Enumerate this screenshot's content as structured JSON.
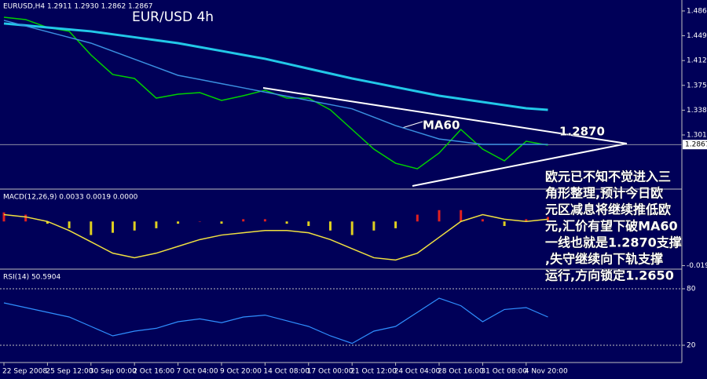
{
  "chart_data": {
    "type": "line",
    "title": "EUR/USD 4h",
    "header": "EURUSD,H4  1.2911 1.2930 1.2862 1.2867",
    "categories": [
      "22 Sep 2008",
      null,
      "25 Sep 12:00",
      null,
      "30 Sep 00:00",
      null,
      "2 Oct 16:00",
      null,
      "7 Oct 04:00",
      null,
      "9 Oct 20:00",
      null,
      "14 Oct 08:00",
      null,
      "17 Oct 00:00",
      null,
      "21 Oct 12:00",
      null,
      "24 Oct 04:00",
      null,
      "28 Oct 16:00",
      null,
      "31 Oct 08:00",
      null,
      "4 Nov 20:00",
      null,
      null
    ],
    "series": [
      {
        "color": "#00d000",
        "values": [
          1.4766,
          1.4731,
          1.4614,
          1.4556,
          1.4204,
          1.3912,
          1.3853,
          1.356,
          1.3619,
          1.3642,
          1.3525,
          1.3595,
          1.3677,
          1.356,
          1.356,
          1.3385,
          1.3092,
          1.2799,
          1.2588,
          1.2506,
          1.2741,
          1.3092,
          1.2799,
          1.2624,
          1.2916,
          1.2858,
          null
        ]
      },
      {
        "color": "#22c8e8",
        "values": [
          1.4673,
          1.4644,
          1.4614,
          1.4585,
          1.4556,
          1.4512,
          1.4468,
          1.4424,
          1.438,
          1.4321,
          1.4263,
          1.4204,
          1.4146,
          1.4073,
          1.3999,
          1.3926,
          1.3853,
          1.3789,
          1.3724,
          1.366,
          1.3595,
          1.3548,
          1.3502,
          1.3455,
          1.3408,
          1.3385,
          null
        ]
      },
      {
        "color": "#3a8fe0",
        "values": [
          1.472,
          1.4635,
          1.455,
          1.4465,
          1.438,
          1.426,
          1.414,
          1.402,
          1.39,
          1.3838,
          1.3775,
          1.3713,
          1.365,
          1.3588,
          1.3525,
          1.3463,
          1.34,
          1.3275,
          1.315,
          1.305,
          1.295,
          1.291,
          1.287,
          1.287,
          1.287,
          1.287,
          null
        ]
      }
    ],
    "ylim": [
      1.2214,
      1.5
    ],
    "yticks": [
      {
        "value": 1.486,
        "label": "1.4860"
      },
      {
        "value": 1.449,
        "label": "1.4490"
      },
      {
        "value": 1.412,
        "label": "1.4120"
      },
      {
        "value": 1.375,
        "label": "1.3750"
      },
      {
        "value": 1.338,
        "label": "1.3380"
      },
      {
        "value": 1.301,
        "label": "1.3010"
      }
    ],
    "current_price": 1.2867,
    "annotations": [
      "MA60",
      "1.2870"
    ],
    "note_lines": [
      "欧元已不知不觉进入三",
      "角形整理,预计今日欧",
      "元区减息将继续推低欧",
      "元,汇价有望下破MA60",
      "一线也就是1.2870支撑",
      ",失守继续向下轨支撑",
      "运行,方向锁定1.2650"
    ],
    "macd": {
      "title": "MACD(12,26,9) 0.0033 0.0019 0.0000",
      "histogram": [
        0.004,
        0.003,
        -0.001,
        -0.003,
        -0.006,
        -0.005,
        -0.004,
        -0.003,
        -0.001,
        0.0,
        -0.001,
        0.001,
        0.001,
        -0.001,
        -0.002,
        -0.004,
        -0.006,
        -0.004,
        -0.003,
        0.003,
        0.005,
        0.005,
        0.001,
        -0.002,
        0.001,
        0.002,
        null
      ],
      "signal": [
        0.003,
        0.002,
        0.0,
        -0.004,
        -0.009,
        -0.014,
        -0.016,
        -0.014,
        -0.011,
        -0.008,
        -0.006,
        -0.005,
        -0.004,
        -0.004,
        -0.005,
        -0.008,
        -0.012,
        -0.016,
        -0.017,
        -0.014,
        -0.007,
        0.0,
        0.003,
        0.001,
        0.0,
        0.001,
        null
      ],
      "ylim": [
        -0.02,
        0.007
      ],
      "yticks": [
        {
          "value": -0.0195,
          "label": "-0.0195"
        }
      ]
    },
    "rsi": {
      "title": "RSI(14) 50.5904",
      "values": [
        65,
        60,
        55,
        50,
        40,
        30,
        35,
        38,
        45,
        48,
        44,
        50,
        52,
        46,
        40,
        30,
        22,
        35,
        40,
        55,
        70,
        62,
        45,
        58,
        60,
        50,
        null
      ],
      "ylim": [
        0,
        100
      ],
      "yticks": [
        80,
        20
      ]
    }
  }
}
